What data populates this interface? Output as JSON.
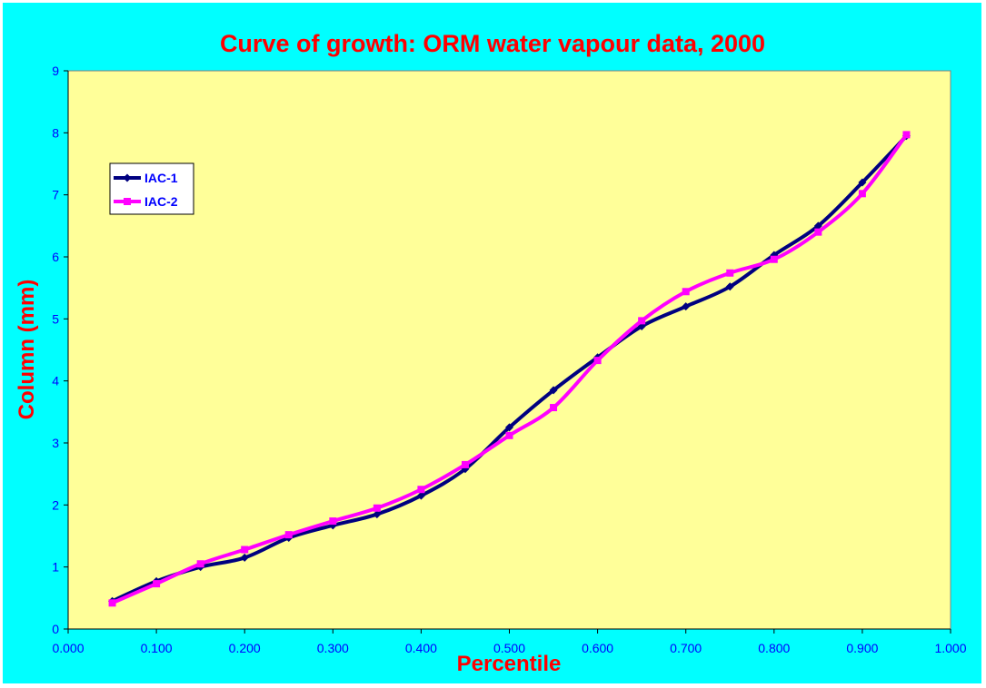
{
  "chart_data": {
    "type": "line",
    "title": "Curve of growth: ORM water vapour data, 2000",
    "xlabel": "Percentile",
    "ylabel": "Column (mm)",
    "xlim": [
      0,
      1
    ],
    "ylim": [
      0,
      9
    ],
    "x_ticks": [
      "0.000",
      "0.100",
      "0.200",
      "0.300",
      "0.400",
      "0.500",
      "0.600",
      "0.700",
      "0.800",
      "0.900",
      "1.000"
    ],
    "y_ticks": [
      "0",
      "1",
      "2",
      "3",
      "4",
      "5",
      "6",
      "7",
      "8",
      "9"
    ],
    "x": [
      0.05,
      0.1,
      0.15,
      0.2,
      0.25,
      0.3,
      0.35,
      0.4,
      0.45,
      0.5,
      0.55,
      0.6,
      0.65,
      0.7,
      0.75,
      0.8,
      0.85,
      0.9,
      0.95
    ],
    "series": [
      {
        "name": "IAC-1",
        "values": [
          0.45,
          0.77,
          1.0,
          1.15,
          1.47,
          1.67,
          1.85,
          2.15,
          2.58,
          3.25,
          3.85,
          4.38,
          4.88,
          5.2,
          5.52,
          6.03,
          6.5,
          7.2,
          7.95
        ],
        "marker": "diamond"
      },
      {
        "name": "IAC-2",
        "values": [
          0.42,
          0.73,
          1.05,
          1.28,
          1.52,
          1.74,
          1.95,
          2.25,
          2.65,
          3.12,
          3.57,
          4.33,
          4.97,
          5.44,
          5.74,
          5.96,
          6.4,
          7.02,
          7.97
        ],
        "marker": "square"
      }
    ],
    "legend_position": "top-left",
    "grid": false
  },
  "colors": {
    "background": "#00ffff",
    "plot_area": "#ffff99",
    "title": "#ff0000",
    "axis_label": "#ff0000",
    "tick_label": "#0000ff",
    "series_1": "#000080",
    "series_2": "#ff00ff"
  }
}
